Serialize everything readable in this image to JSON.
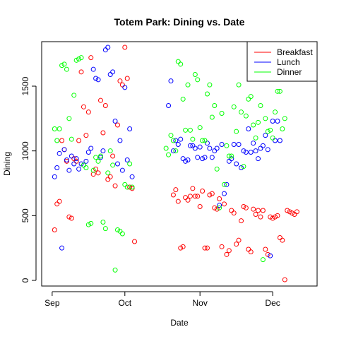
{
  "chart_data": {
    "type": "scatter",
    "title": "Totem Park: Dining vs. Date",
    "xlabel": "Date",
    "ylabel": "Dining",
    "x_tick_labels": [
      "Sep",
      "Oct",
      "Nov",
      "Dec"
    ],
    "x_tick_dates": [
      "2024-09-01",
      "2024-10-01",
      "2024-11-01",
      "2024-12-01"
    ],
    "y_ticks": [
      0,
      500,
      1000,
      1500
    ],
    "xlim": [
      "2024-08-30",
      "2024-12-17"
    ],
    "ylim": [
      0,
      1800
    ],
    "grid": false,
    "legend_position": "top-right",
    "series": [
      {
        "name": "Breakfast",
        "color": "#ff0000",
        "points": [
          [
            "2024-09-02",
            390
          ],
          [
            "2024-09-03",
            590
          ],
          [
            "2024-09-04",
            610
          ],
          [
            "2024-09-05",
            1080
          ],
          [
            "2024-09-06",
            1010
          ],
          [
            "2024-09-07",
            920
          ],
          [
            "2024-09-08",
            490
          ],
          [
            "2024-09-09",
            480
          ],
          [
            "2024-09-10",
            940
          ],
          [
            "2024-09-11",
            920
          ],
          [
            "2024-09-12",
            1080
          ],
          [
            "2024-09-13",
            1610
          ],
          [
            "2024-09-14",
            1340
          ],
          [
            "2024-09-15",
            1120
          ],
          [
            "2024-09-16",
            1300
          ],
          [
            "2024-09-17",
            1720
          ],
          [
            "2024-09-18",
            820
          ],
          [
            "2024-09-19",
            860
          ],
          [
            "2024-09-20",
            830
          ],
          [
            "2024-09-21",
            1390
          ],
          [
            "2024-09-22",
            1140
          ],
          [
            "2024-09-23",
            1350
          ],
          [
            "2024-09-24",
            780
          ],
          [
            "2024-09-25",
            800
          ],
          [
            "2024-09-26",
            960
          ],
          [
            "2024-09-27",
            730
          ],
          [
            "2024-09-28",
            1200
          ],
          [
            "2024-09-29",
            1540
          ],
          [
            "2024-09-30",
            1510
          ],
          [
            "2024-10-01",
            1800
          ],
          [
            "2024-10-02",
            1560
          ],
          [
            "2024-10-03",
            720
          ],
          [
            "2024-10-04",
            710
          ],
          [
            "2024-10-05",
            300
          ],
          [
            "2024-10-21",
            660
          ],
          [
            "2024-10-22",
            700
          ],
          [
            "2024-10-23",
            610
          ],
          [
            "2024-10-24",
            250
          ],
          [
            "2024-10-25",
            260
          ],
          [
            "2024-10-26",
            640
          ],
          [
            "2024-10-27",
            620
          ],
          [
            "2024-10-28",
            650
          ],
          [
            "2024-10-29",
            710
          ],
          [
            "2024-10-30",
            650
          ],
          [
            "2024-10-31",
            650
          ],
          [
            "2024-11-01",
            570
          ],
          [
            "2024-11-02",
            690
          ],
          [
            "2024-11-03",
            250
          ],
          [
            "2024-11-04",
            250
          ],
          [
            "2024-11-05",
            660
          ],
          [
            "2024-11-06",
            670
          ],
          [
            "2024-11-07",
            560
          ],
          [
            "2024-11-08",
            550
          ],
          [
            "2024-11-09",
            630
          ],
          [
            "2024-11-10",
            260
          ],
          [
            "2024-11-11",
            590
          ],
          [
            "2024-11-12",
            200
          ],
          [
            "2024-11-13",
            230
          ],
          [
            "2024-11-14",
            540
          ],
          [
            "2024-11-15",
            520
          ],
          [
            "2024-11-16",
            280
          ],
          [
            "2024-11-17",
            310
          ],
          [
            "2024-11-18",
            460
          ],
          [
            "2024-11-19",
            570
          ],
          [
            "2024-11-20",
            560
          ],
          [
            "2024-11-21",
            240
          ],
          [
            "2024-11-22",
            220
          ],
          [
            "2024-11-23",
            550
          ],
          [
            "2024-11-24",
            510
          ],
          [
            "2024-11-25",
            540
          ],
          [
            "2024-11-26",
            490
          ],
          [
            "2024-11-27",
            540
          ],
          [
            "2024-11-28",
            240
          ],
          [
            "2024-11-29",
            200
          ],
          [
            "2024-11-30",
            490
          ],
          [
            "2024-12-01",
            480
          ],
          [
            "2024-12-02",
            490
          ],
          [
            "2024-12-03",
            500
          ],
          [
            "2024-12-04",
            330
          ],
          [
            "2024-12-05",
            310
          ],
          [
            "2024-12-06",
            5
          ],
          [
            "2024-12-07",
            540
          ],
          [
            "2024-12-08",
            530
          ],
          [
            "2024-12-09",
            520
          ],
          [
            "2024-12-10",
            510
          ],
          [
            "2024-12-11",
            530
          ]
        ]
      },
      {
        "name": "Lunch",
        "color": "#0000ff",
        "points": [
          [
            "2024-09-02",
            800
          ],
          [
            "2024-09-03",
            870
          ],
          [
            "2024-09-04",
            980
          ],
          [
            "2024-09-05",
            250
          ],
          [
            "2024-09-06",
            1010
          ],
          [
            "2024-09-07",
            930
          ],
          [
            "2024-09-08",
            850
          ],
          [
            "2024-09-09",
            960
          ],
          [
            "2024-09-10",
            900
          ],
          [
            "2024-09-11",
            940
          ],
          [
            "2024-09-12",
            860
          ],
          [
            "2024-09-13",
            900
          ],
          [
            "2024-09-14",
            890
          ],
          [
            "2024-09-15",
            920
          ],
          [
            "2024-09-16",
            990
          ],
          [
            "2024-09-17",
            1020
          ],
          [
            "2024-09-18",
            1630
          ],
          [
            "2024-09-19",
            1560
          ],
          [
            "2024-09-20",
            1550
          ],
          [
            "2024-09-21",
            950
          ],
          [
            "2024-09-22",
            1000
          ],
          [
            "2024-09-23",
            1780
          ],
          [
            "2024-09-24",
            1800
          ],
          [
            "2024-09-25",
            1590
          ],
          [
            "2024-09-26",
            1610
          ],
          [
            "2024-09-27",
            1230
          ],
          [
            "2024-09-28",
            900
          ],
          [
            "2024-09-29",
            1080
          ],
          [
            "2024-09-30",
            850
          ],
          [
            "2024-10-01",
            1490
          ],
          [
            "2024-10-02",
            930
          ],
          [
            "2024-10-03",
            1170
          ],
          [
            "2024-10-04",
            800
          ],
          [
            "2024-10-19",
            1350
          ],
          [
            "2024-10-20",
            1540
          ],
          [
            "2024-10-21",
            1000
          ],
          [
            "2024-10-22",
            1080
          ],
          [
            "2024-10-23",
            1050
          ],
          [
            "2024-10-24",
            1090
          ],
          [
            "2024-10-25",
            940
          ],
          [
            "2024-10-26",
            920
          ],
          [
            "2024-10-27",
            930
          ],
          [
            "2024-10-28",
            1040
          ],
          [
            "2024-10-29",
            1040
          ],
          [
            "2024-10-30",
            1020
          ],
          [
            "2024-10-31",
            950
          ],
          [
            "2024-11-01",
            1030
          ],
          [
            "2024-11-02",
            940
          ],
          [
            "2024-11-03",
            950
          ],
          [
            "2024-11-04",
            1060
          ],
          [
            "2024-11-05",
            1020
          ],
          [
            "2024-11-06",
            950
          ],
          [
            "2024-11-07",
            1000
          ],
          [
            "2024-11-08",
            1020
          ],
          [
            "2024-11-09",
            580
          ],
          [
            "2024-11-10",
            1050
          ],
          [
            "2024-11-11",
            670
          ],
          [
            "2024-11-12",
            740
          ],
          [
            "2024-11-13",
            920
          ],
          [
            "2024-11-14",
            940
          ],
          [
            "2024-11-15",
            1050
          ],
          [
            "2024-11-16",
            900
          ],
          [
            "2024-11-17",
            1050
          ],
          [
            "2024-11-18",
            870
          ],
          [
            "2024-11-19",
            1000
          ],
          [
            "2024-11-20",
            990
          ],
          [
            "2024-11-21",
            1170
          ],
          [
            "2024-11-22",
            990
          ],
          [
            "2024-11-23",
            1060
          ],
          [
            "2024-11-24",
            1000
          ],
          [
            "2024-11-25",
            940
          ],
          [
            "2024-11-26",
            1020
          ],
          [
            "2024-11-27",
            1040
          ],
          [
            "2024-11-28",
            1120
          ],
          [
            "2024-11-29",
            1010
          ],
          [
            "2024-11-30",
            190
          ],
          [
            "2024-12-01",
            1230
          ],
          [
            "2024-12-02",
            1080
          ],
          [
            "2024-12-03",
            1230
          ],
          [
            "2024-12-04",
            1080
          ]
        ]
      },
      {
        "name": "Dinner",
        "color": "#00ff00",
        "points": [
          [
            "2024-09-02",
            1170
          ],
          [
            "2024-09-03",
            1080
          ],
          [
            "2024-09-04",
            1170
          ],
          [
            "2024-09-05",
            1660
          ],
          [
            "2024-09-06",
            1670
          ],
          [
            "2024-09-07",
            1630
          ],
          [
            "2024-09-08",
            1250
          ],
          [
            "2024-09-09",
            1090
          ],
          [
            "2024-09-10",
            1430
          ],
          [
            "2024-09-11",
            1700
          ],
          [
            "2024-09-12",
            1710
          ],
          [
            "2024-09-13",
            1720
          ],
          [
            "2024-09-14",
            890
          ],
          [
            "2024-09-15",
            870
          ],
          [
            "2024-09-16",
            430
          ],
          [
            "2024-09-17",
            440
          ],
          [
            "2024-09-18",
            850
          ],
          [
            "2024-09-19",
            950
          ],
          [
            "2024-09-20",
            920
          ],
          [
            "2024-09-21",
            960
          ],
          [
            "2024-09-22",
            450
          ],
          [
            "2024-09-23",
            400
          ],
          [
            "2024-09-24",
            830
          ],
          [
            "2024-09-25",
            1000
          ],
          [
            "2024-09-26",
            890
          ],
          [
            "2024-09-27",
            80
          ],
          [
            "2024-09-28",
            390
          ],
          [
            "2024-09-29",
            380
          ],
          [
            "2024-09-30",
            360
          ],
          [
            "2024-10-01",
            740
          ],
          [
            "2024-10-02",
            720
          ],
          [
            "2024-10-03",
            900
          ],
          [
            "2024-10-04",
            720
          ],
          [
            "2024-10-18",
            1020
          ],
          [
            "2024-10-19",
            970
          ],
          [
            "2024-10-20",
            1120
          ],
          [
            "2024-10-21",
            1080
          ],
          [
            "2024-10-22",
            1000
          ],
          [
            "2024-10-23",
            1690
          ],
          [
            "2024-10-24",
            1670
          ],
          [
            "2024-10-25",
            1400
          ],
          [
            "2024-10-26",
            1160
          ],
          [
            "2024-10-27",
            1510
          ],
          [
            "2024-10-28",
            1160
          ],
          [
            "2024-10-29",
            1090
          ],
          [
            "2024-10-30",
            1590
          ],
          [
            "2024-10-31",
            1550
          ],
          [
            "2024-11-01",
            1180
          ],
          [
            "2024-11-02",
            1080
          ],
          [
            "2024-11-03",
            1080
          ],
          [
            "2024-11-04",
            1440
          ],
          [
            "2024-11-05",
            1510
          ],
          [
            "2024-11-06",
            1260
          ],
          [
            "2024-11-07",
            1350
          ],
          [
            "2024-11-08",
            860
          ],
          [
            "2024-11-09",
            560
          ],
          [
            "2024-11-10",
            1290
          ],
          [
            "2024-11-11",
            740
          ],
          [
            "2024-11-12",
            1040
          ],
          [
            "2024-11-13",
            960
          ],
          [
            "2024-11-14",
            960
          ],
          [
            "2024-11-15",
            1340
          ],
          [
            "2024-11-16",
            1150
          ],
          [
            "2024-11-17",
            1510
          ],
          [
            "2024-11-18",
            1300
          ],
          [
            "2024-11-19",
            880
          ],
          [
            "2024-11-20",
            1270
          ],
          [
            "2024-11-21",
            1400
          ],
          [
            "2024-11-22",
            1420
          ],
          [
            "2024-11-23",
            1200
          ],
          [
            "2024-11-24",
            1100
          ],
          [
            "2024-11-25",
            1220
          ],
          [
            "2024-11-26",
            1350
          ],
          [
            "2024-11-27",
            160
          ],
          [
            "2024-11-28",
            1250
          ],
          [
            "2024-11-29",
            1150
          ],
          [
            "2024-11-30",
            1160
          ],
          [
            "2024-12-01",
            1100
          ],
          [
            "2024-12-02",
            1300
          ],
          [
            "2024-12-03",
            1460
          ],
          [
            "2024-12-04",
            1460
          ],
          [
            "2024-12-05",
            1170
          ],
          [
            "2024-12-06",
            1250
          ]
        ]
      }
    ]
  }
}
